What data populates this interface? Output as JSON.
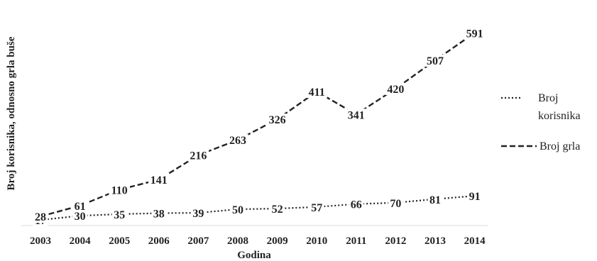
{
  "chart_data": {
    "type": "line",
    "categories": [
      "2003",
      "2004",
      "2005",
      "2006",
      "2007",
      "2008",
      "2009",
      "2010",
      "2011",
      "2012",
      "2013",
      "2014"
    ],
    "series": [
      {
        "name": "Broj korisnika",
        "values": [
          17,
          30,
          35,
          38,
          39,
          50,
          52,
          57,
          66,
          70,
          81,
          91
        ],
        "line_style": "dotted",
        "color": "#222222"
      },
      {
        "name": "Broj grla",
        "values": [
          28,
          61,
          110,
          141,
          216,
          263,
          326,
          411,
          341,
          420,
          507,
          591
        ],
        "line_style": "dashed",
        "color": "#222222"
      }
    ],
    "xlabel": "Godina",
    "ylabel": "Broj korisnika, odnosno grla buše",
    "ylim": [
      0,
      620
    ],
    "grid": false,
    "legend_position": "right",
    "legend": {
      "korisnika_line1": "Broj",
      "korisnika_line2": "korisnika",
      "grla": "Broj grla"
    }
  }
}
